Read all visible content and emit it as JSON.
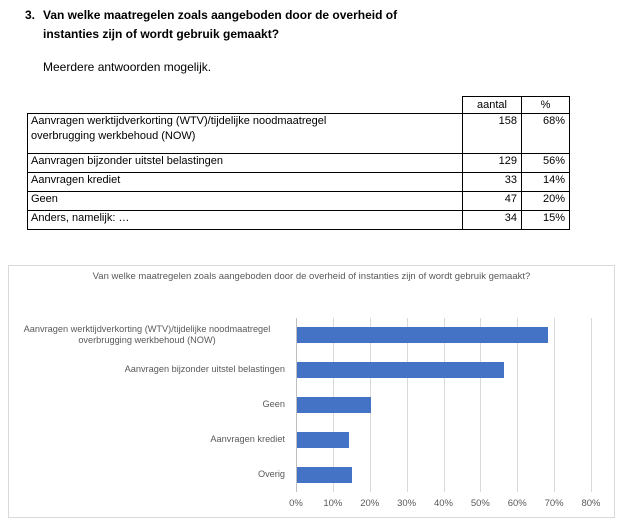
{
  "question": {
    "number": "3.",
    "title_line1": "Van welke maatregelen zoals aangeboden door de overheid of",
    "title_line2": "instanties zijn of wordt gebruik gemaakt?",
    "subtitle": "Meerdere antwoorden mogelijk."
  },
  "table": {
    "headers": {
      "aantal": "aantal",
      "percent": "%"
    },
    "rows": [
      {
        "label": "Aanvragen werktijdverkorting (WTV)/tijdelijke noodmaatregel overbrugging werkbehoud (NOW)",
        "aantal": "158",
        "percent": "68%"
      },
      {
        "label": "Aanvragen bijzonder uitstel belastingen",
        "aantal": "129",
        "percent": "56%"
      },
      {
        "label": "Aanvragen krediet",
        "aantal": "33",
        "percent": "14%"
      },
      {
        "label": "Geen",
        "aantal": "47",
        "percent": "20%"
      },
      {
        "label": "Anders, namelijk: …",
        "aantal": "34",
        "percent": "15%"
      }
    ]
  },
  "chart_data": {
    "type": "bar",
    "orientation": "horizontal",
    "title": "Van welke maatregelen zoals aangeboden door de overheid of instanties zijn of wordt gebruik gemaakt?",
    "categories": [
      "Aanvragen werktijdverkorting (WTV)/tijdelijke noodmaatregel overbrugging werkbehoud (NOW)",
      "Aanvragen bijzonder uitstel belastingen",
      "Geen",
      "Aanvragen krediet",
      "Overig"
    ],
    "values": [
      68,
      56,
      20,
      14,
      15
    ],
    "unit": "%",
    "xlim": [
      0,
      80
    ],
    "x_ticks": [
      "0%",
      "10%",
      "20%",
      "30%",
      "40%",
      "50%",
      "60%",
      "70%",
      "80%"
    ],
    "grid": true,
    "legend": "none",
    "bar_color": "#4472C4",
    "gridline_color": "#D9D9D9",
    "axis_line_color": "#BFBFBF",
    "text_color": "#595959"
  }
}
